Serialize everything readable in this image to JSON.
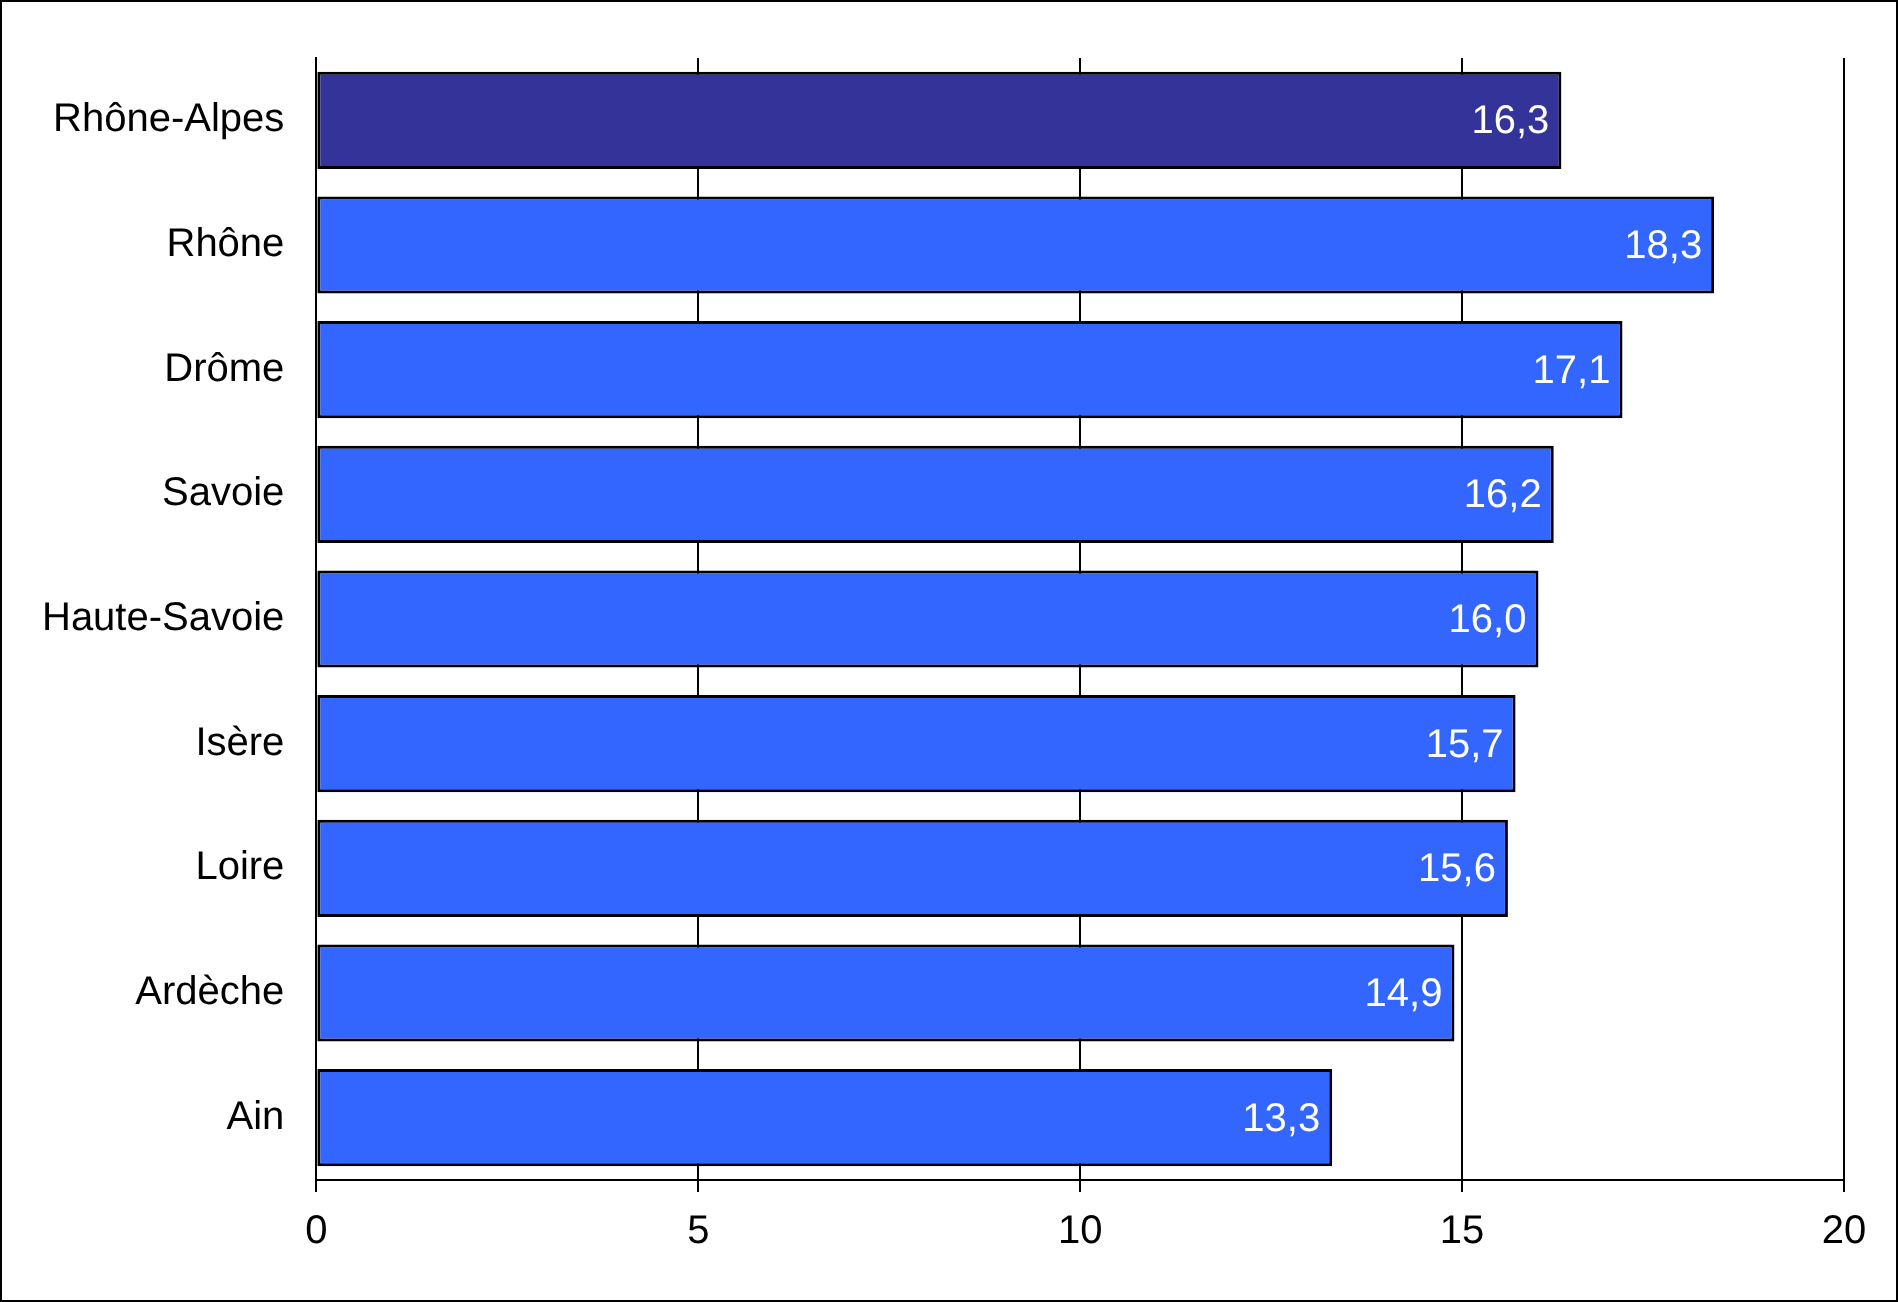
{
  "chart_data": {
    "type": "bar",
    "orientation": "horizontal",
    "categories": [
      "Rhône-Alpes",
      "Rhône",
      "Drôme",
      "Savoie",
      "Haute-Savoie",
      "Isère",
      "Loire",
      "Ardèche",
      "Ain"
    ],
    "values": [
      16.3,
      18.3,
      17.1,
      16.2,
      16.0,
      15.7,
      15.6,
      14.9,
      13.3
    ],
    "colors": [
      "#333399",
      "#3366ff",
      "#3366ff",
      "#3366ff",
      "#3366ff",
      "#3366ff",
      "#3366ff",
      "#3366ff",
      "#3366ff"
    ],
    "value_labels": [
      "16,3",
      "18,3",
      "17,1",
      "16,2",
      "16,0",
      "15,7",
      "15,6",
      "14,9",
      "13,3"
    ],
    "xlim": [
      0,
      20
    ],
    "xticks": [
      0,
      5,
      10,
      15,
      20
    ],
    "grid": "x",
    "legend": false
  }
}
